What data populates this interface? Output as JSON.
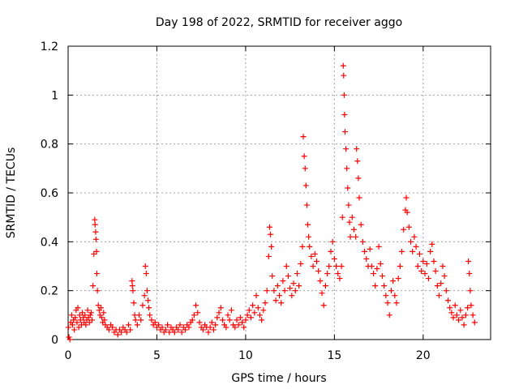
{
  "chart_data": {
    "type": "scatter",
    "title": "Day 198 of 2022, SRMTID for receiver aggo",
    "xlabel": "GPS time / hours",
    "ylabel": "SRMTID / TECUs",
    "xlim": [
      0,
      23.8
    ],
    "ylim": [
      0,
      1.2
    ],
    "xticks": [
      0,
      5,
      10,
      15,
      20
    ],
    "xtick_labels": [
      "0",
      "5",
      "10",
      "15",
      "20"
    ],
    "yticks": [
      0,
      0.2,
      0.4,
      0.6,
      0.8,
      1.0,
      1.2
    ],
    "ytick_labels": [
      "0",
      "0.2",
      "0.4",
      "0.6",
      "0.8",
      "1",
      "1.2"
    ],
    "grid": true,
    "marker": "+",
    "color": "#ff0000",
    "series": [
      {
        "name": "SRMTID",
        "points": [
          [
            0.02,
            0.05
          ],
          [
            0.05,
            0.01
          ],
          [
            0.1,
            0.0
          ],
          [
            0.15,
            0.07
          ],
          [
            0.2,
            0.1
          ],
          [
            0.25,
            0.06
          ],
          [
            0.3,
            0.08
          ],
          [
            0.35,
            0.04
          ],
          [
            0.4,
            0.09
          ],
          [
            0.45,
            0.12
          ],
          [
            0.5,
            0.07
          ],
          [
            0.55,
            0.13
          ],
          [
            0.6,
            0.05
          ],
          [
            0.65,
            0.1
          ],
          [
            0.7,
            0.08
          ],
          [
            0.75,
            0.06
          ],
          [
            0.8,
            0.11
          ],
          [
            0.85,
            0.09
          ],
          [
            0.9,
            0.07
          ],
          [
            0.95,
            0.1
          ],
          [
            1.0,
            0.06
          ],
          [
            1.05,
            0.08
          ],
          [
            1.1,
            0.12
          ],
          [
            1.15,
            0.09
          ],
          [
            1.2,
            0.07
          ],
          [
            1.25,
            0.1
          ],
          [
            1.3,
            0.11
          ],
          [
            1.35,
            0.08
          ],
          [
            1.4,
            0.22
          ],
          [
            1.45,
            0.35
          ],
          [
            1.5,
            0.49
          ],
          [
            1.52,
            0.47
          ],
          [
            1.55,
            0.44
          ],
          [
            1.57,
            0.41
          ],
          [
            1.6,
            0.36
          ],
          [
            1.62,
            0.27
          ],
          [
            1.65,
            0.2
          ],
          [
            1.7,
            0.14
          ],
          [
            1.75,
            0.12
          ],
          [
            1.8,
            0.1
          ],
          [
            1.85,
            0.13
          ],
          [
            1.9,
            0.09
          ],
          [
            1.95,
            0.07
          ],
          [
            2.0,
            0.11
          ],
          [
            2.05,
            0.08
          ],
          [
            2.1,
            0.06
          ],
          [
            2.2,
            0.05
          ],
          [
            2.3,
            0.04
          ],
          [
            2.4,
            0.06
          ],
          [
            2.5,
            0.05
          ],
          [
            2.6,
            0.03
          ],
          [
            2.7,
            0.04
          ],
          [
            2.8,
            0.02
          ],
          [
            2.9,
            0.04
          ],
          [
            3.0,
            0.03
          ],
          [
            3.1,
            0.05
          ],
          [
            3.2,
            0.04
          ],
          [
            3.3,
            0.03
          ],
          [
            3.4,
            0.06
          ],
          [
            3.5,
            0.04
          ],
          [
            3.6,
            0.24
          ],
          [
            3.62,
            0.22
          ],
          [
            3.65,
            0.2
          ],
          [
            3.7,
            0.15
          ],
          [
            3.75,
            0.1
          ],
          [
            3.8,
            0.08
          ],
          [
            3.9,
            0.06
          ],
          [
            4.0,
            0.1
          ],
          [
            4.1,
            0.08
          ],
          [
            4.2,
            0.14
          ],
          [
            4.3,
            0.18
          ],
          [
            4.35,
            0.3
          ],
          [
            4.4,
            0.27
          ],
          [
            4.45,
            0.2
          ],
          [
            4.5,
            0.16
          ],
          [
            4.55,
            0.13
          ],
          [
            4.6,
            0.1
          ],
          [
            4.7,
            0.08
          ],
          [
            4.8,
            0.06
          ],
          [
            4.9,
            0.07
          ],
          [
            5.0,
            0.05
          ],
          [
            5.1,
            0.06
          ],
          [
            5.2,
            0.04
          ],
          [
            5.3,
            0.05
          ],
          [
            5.4,
            0.03
          ],
          [
            5.5,
            0.04
          ],
          [
            5.6,
            0.06
          ],
          [
            5.7,
            0.03
          ],
          [
            5.8,
            0.05
          ],
          [
            5.9,
            0.04
          ],
          [
            6.0,
            0.03
          ],
          [
            6.1,
            0.05
          ],
          [
            6.2,
            0.04
          ],
          [
            6.3,
            0.06
          ],
          [
            6.4,
            0.03
          ],
          [
            6.5,
            0.05
          ],
          [
            6.6,
            0.04
          ],
          [
            6.7,
            0.06
          ],
          [
            6.8,
            0.05
          ],
          [
            6.9,
            0.07
          ],
          [
            7.0,
            0.08
          ],
          [
            7.1,
            0.1
          ],
          [
            7.2,
            0.14
          ],
          [
            7.3,
            0.11
          ],
          [
            7.4,
            0.07
          ],
          [
            7.5,
            0.05
          ],
          [
            7.6,
            0.04
          ],
          [
            7.7,
            0.06
          ],
          [
            7.8,
            0.05
          ],
          [
            7.9,
            0.03
          ],
          [
            8.0,
            0.05
          ],
          [
            8.1,
            0.07
          ],
          [
            8.2,
            0.04
          ],
          [
            8.3,
            0.06
          ],
          [
            8.4,
            0.09
          ],
          [
            8.5,
            0.11
          ],
          [
            8.6,
            0.13
          ],
          [
            8.7,
            0.08
          ],
          [
            8.8,
            0.06
          ],
          [
            8.9,
            0.05
          ],
          [
            9.0,
            0.1
          ],
          [
            9.1,
            0.08
          ],
          [
            9.2,
            0.12
          ],
          [
            9.3,
            0.06
          ],
          [
            9.4,
            0.05
          ],
          [
            9.5,
            0.08
          ],
          [
            9.6,
            0.06
          ],
          [
            9.7,
            0.09
          ],
          [
            9.8,
            0.07
          ],
          [
            9.9,
            0.05
          ],
          [
            10.0,
            0.08
          ],
          [
            10.1,
            0.1
          ],
          [
            10.2,
            0.12
          ],
          [
            10.3,
            0.09
          ],
          [
            10.4,
            0.14
          ],
          [
            10.5,
            0.11
          ],
          [
            10.6,
            0.18
          ],
          [
            10.7,
            0.13
          ],
          [
            10.8,
            0.1
          ],
          [
            10.9,
            0.08
          ],
          [
            11.0,
            0.12
          ],
          [
            11.1,
            0.15
          ],
          [
            11.2,
            0.2
          ],
          [
            11.3,
            0.34
          ],
          [
            11.35,
            0.46
          ],
          [
            11.4,
            0.43
          ],
          [
            11.45,
            0.38
          ],
          [
            11.5,
            0.26
          ],
          [
            11.6,
            0.2
          ],
          [
            11.7,
            0.16
          ],
          [
            11.8,
            0.22
          ],
          [
            11.9,
            0.18
          ],
          [
            12.0,
            0.15
          ],
          [
            12.1,
            0.24
          ],
          [
            12.2,
            0.2
          ],
          [
            12.3,
            0.3
          ],
          [
            12.4,
            0.26
          ],
          [
            12.5,
            0.21
          ],
          [
            12.6,
            0.18
          ],
          [
            12.7,
            0.23
          ],
          [
            12.8,
            0.2
          ],
          [
            12.9,
            0.27
          ],
          [
            13.0,
            0.22
          ],
          [
            13.1,
            0.31
          ],
          [
            13.2,
            0.38
          ],
          [
            13.25,
            0.83
          ],
          [
            13.3,
            0.75
          ],
          [
            13.35,
            0.7
          ],
          [
            13.4,
            0.63
          ],
          [
            13.45,
            0.55
          ],
          [
            13.5,
            0.47
          ],
          [
            13.55,
            0.42
          ],
          [
            13.6,
            0.38
          ],
          [
            13.7,
            0.34
          ],
          [
            13.8,
            0.3
          ],
          [
            13.9,
            0.35
          ],
          [
            14.0,
            0.32
          ],
          [
            14.1,
            0.28
          ],
          [
            14.2,
            0.24
          ],
          [
            14.3,
            0.19
          ],
          [
            14.4,
            0.14
          ],
          [
            14.5,
            0.22
          ],
          [
            14.6,
            0.27
          ],
          [
            14.7,
            0.3
          ],
          [
            14.8,
            0.36
          ],
          [
            14.9,
            0.4
          ],
          [
            15.0,
            0.33
          ],
          [
            15.1,
            0.3
          ],
          [
            15.2,
            0.27
          ],
          [
            15.3,
            0.25
          ],
          [
            15.4,
            0.3
          ],
          [
            15.45,
            0.5
          ],
          [
            15.5,
            1.12
          ],
          [
            15.52,
            1.08
          ],
          [
            15.55,
            1.0
          ],
          [
            15.57,
            0.92
          ],
          [
            15.6,
            0.85
          ],
          [
            15.65,
            0.78
          ],
          [
            15.7,
            0.7
          ],
          [
            15.75,
            0.62
          ],
          [
            15.8,
            0.55
          ],
          [
            15.85,
            0.48
          ],
          [
            15.9,
            0.42
          ],
          [
            16.0,
            0.5
          ],
          [
            16.1,
            0.45
          ],
          [
            16.2,
            0.42
          ],
          [
            16.25,
            0.78
          ],
          [
            16.3,
            0.73
          ],
          [
            16.35,
            0.66
          ],
          [
            16.4,
            0.58
          ],
          [
            16.5,
            0.47
          ],
          [
            16.6,
            0.4
          ],
          [
            16.7,
            0.36
          ],
          [
            16.8,
            0.33
          ],
          [
            16.9,
            0.3
          ],
          [
            17.0,
            0.37
          ],
          [
            17.1,
            0.3
          ],
          [
            17.2,
            0.27
          ],
          [
            17.3,
            0.22
          ],
          [
            17.4,
            0.29
          ],
          [
            17.5,
            0.38
          ],
          [
            17.6,
            0.31
          ],
          [
            17.7,
            0.26
          ],
          [
            17.8,
            0.22
          ],
          [
            17.9,
            0.18
          ],
          [
            18.0,
            0.15
          ],
          [
            18.1,
            0.1
          ],
          [
            18.2,
            0.2
          ],
          [
            18.3,
            0.24
          ],
          [
            18.4,
            0.18
          ],
          [
            18.5,
            0.15
          ],
          [
            18.6,
            0.25
          ],
          [
            18.7,
            0.3
          ],
          [
            18.8,
            0.36
          ],
          [
            18.9,
            0.45
          ],
          [
            19.0,
            0.53
          ],
          [
            19.05,
            0.58
          ],
          [
            19.1,
            0.52
          ],
          [
            19.2,
            0.46
          ],
          [
            19.3,
            0.4
          ],
          [
            19.4,
            0.36
          ],
          [
            19.5,
            0.42
          ],
          [
            19.6,
            0.38
          ],
          [
            19.7,
            0.3
          ],
          [
            19.8,
            0.35
          ],
          [
            19.9,
            0.28
          ],
          [
            20.0,
            0.32
          ],
          [
            20.1,
            0.27
          ],
          [
            20.2,
            0.31
          ],
          [
            20.3,
            0.25
          ],
          [
            20.4,
            0.36
          ],
          [
            20.5,
            0.39
          ],
          [
            20.6,
            0.32
          ],
          [
            20.7,
            0.28
          ],
          [
            20.8,
            0.22
          ],
          [
            20.9,
            0.18
          ],
          [
            21.0,
            0.23
          ],
          [
            21.1,
            0.3
          ],
          [
            21.2,
            0.26
          ],
          [
            21.3,
            0.2
          ],
          [
            21.4,
            0.16
          ],
          [
            21.5,
            0.13
          ],
          [
            21.6,
            0.11
          ],
          [
            21.7,
            0.09
          ],
          [
            21.8,
            0.14
          ],
          [
            21.9,
            0.1
          ],
          [
            22.0,
            0.08
          ],
          [
            22.1,
            0.12
          ],
          [
            22.2,
            0.09
          ],
          [
            22.3,
            0.06
          ],
          [
            22.4,
            0.1
          ],
          [
            22.5,
            0.13
          ],
          [
            22.55,
            0.32
          ],
          [
            22.6,
            0.27
          ],
          [
            22.65,
            0.2
          ],
          [
            22.7,
            0.14
          ],
          [
            22.8,
            0.1
          ],
          [
            22.9,
            0.07
          ]
        ]
      }
    ]
  }
}
